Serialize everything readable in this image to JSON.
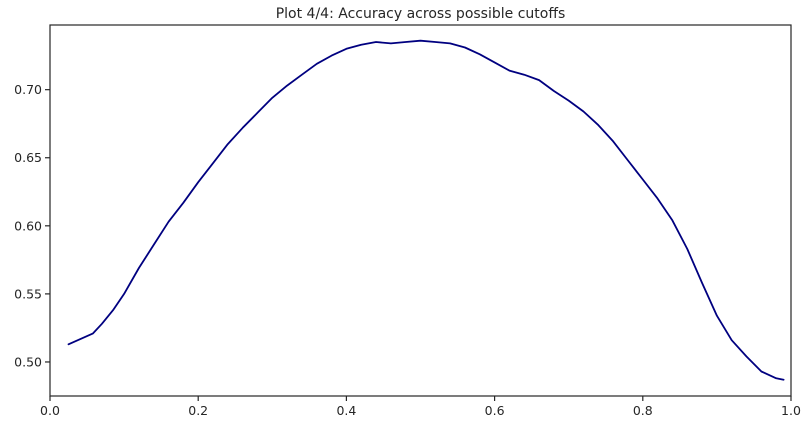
{
  "chart_data": {
    "type": "line",
    "title": "Plot 4/4: Accuracy across possible cutoffs",
    "xlabel": "",
    "ylabel": "",
    "xlim": [
      0.0,
      1.0
    ],
    "ylim": [
      0.475,
      0.7475
    ],
    "x_ticks": [
      0.0,
      0.2,
      0.4,
      0.6,
      0.8,
      1.0
    ],
    "x_tick_labels": [
      "0.0",
      "0.2",
      "0.4",
      "0.6",
      "0.8",
      "1.0"
    ],
    "y_ticks": [
      0.5,
      0.55,
      0.6,
      0.65,
      0.7
    ],
    "y_tick_labels": [
      "0.50",
      "0.55",
      "0.60",
      "0.65",
      "0.70"
    ],
    "grid": false,
    "legend": "none",
    "series": [
      {
        "color": "#000080",
        "x": [
          0.025,
          0.058,
          0.07,
          0.085,
          0.1,
          0.12,
          0.14,
          0.16,
          0.18,
          0.2,
          0.22,
          0.24,
          0.26,
          0.28,
          0.3,
          0.32,
          0.34,
          0.36,
          0.38,
          0.4,
          0.42,
          0.44,
          0.46,
          0.48,
          0.5,
          0.52,
          0.54,
          0.56,
          0.58,
          0.6,
          0.62,
          0.64,
          0.66,
          0.68,
          0.7,
          0.72,
          0.74,
          0.76,
          0.78,
          0.8,
          0.82,
          0.84,
          0.86,
          0.88,
          0.9,
          0.92,
          0.94,
          0.96,
          0.98,
          0.99
        ],
        "y": [
          0.513,
          0.521,
          0.528,
          0.538,
          0.55,
          0.569,
          0.586,
          0.603,
          0.617,
          0.632,
          0.646,
          0.66,
          0.672,
          0.683,
          0.694,
          0.703,
          0.711,
          0.719,
          0.725,
          0.73,
          0.733,
          0.735,
          0.734,
          0.735,
          0.736,
          0.735,
          0.734,
          0.731,
          0.726,
          0.72,
          0.714,
          0.711,
          0.707,
          0.699,
          0.692,
          0.684,
          0.674,
          0.662,
          0.648,
          0.634,
          0.62,
          0.604,
          0.583,
          0.558,
          0.534,
          0.516,
          0.504,
          0.493,
          0.488,
          0.487
        ]
      }
    ]
  }
}
